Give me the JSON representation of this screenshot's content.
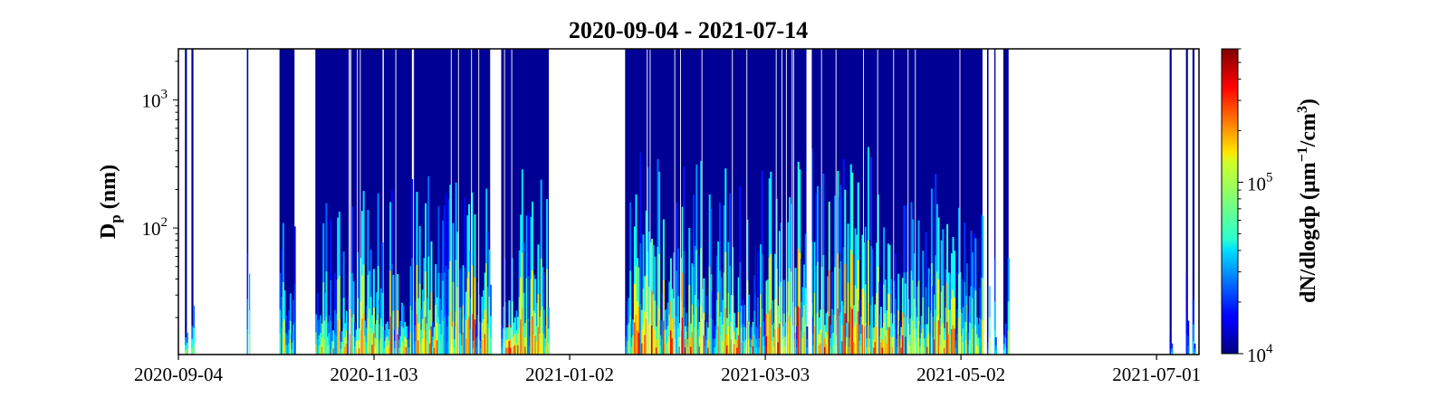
{
  "chart_data": {
    "type": "heatmap",
    "title": "2020-09-04 - 2021-07-14",
    "xlabel": "",
    "ylabel": "D",
    "ylabel_sub": "p",
    "ylabel_unit": " (nm)",
    "x_tick_labels": [
      "2020-09-04",
      "2020-11-03",
      "2021-01-02",
      "2021-03-03",
      "2021-05-02",
      "2021-07-01"
    ],
    "x_tick_dates": [
      "2020-09-04",
      "2020-11-03",
      "2021-01-02",
      "2021-03-03",
      "2021-05-02",
      "2021-07-01"
    ],
    "xlim": [
      "2020-09-04",
      "2021-07-14"
    ],
    "y_scale": "log",
    "ylim": [
      10.3,
      2500
    ],
    "y_ticks": [
      {
        "value": 100,
        "base": "10",
        "exp": "2"
      },
      {
        "value": 1000,
        "base": "10",
        "exp": "3"
      }
    ],
    "colorbar": {
      "label_main": "dN/dlogdp (μm",
      "label_exp1": "−1",
      "label_mid": "/cm",
      "label_exp2": "3",
      "label_end": ")",
      "scale": "log",
      "range": [
        10000,
        600000
      ],
      "ticks": [
        {
          "value": 10000,
          "base": "10",
          "exp": "4"
        },
        {
          "value": 100000,
          "base": "10",
          "exp": "5"
        }
      ],
      "colormap": "jet"
    },
    "data_periods": [
      {
        "start": "2020-09-06",
        "end": "2020-09-06",
        "intensity": 0.3
      },
      {
        "start": "2020-09-08",
        "end": "2020-09-08",
        "intensity": 0.3
      },
      {
        "start": "2020-09-25",
        "end": "2020-09-25",
        "intensity": 0.4
      },
      {
        "start": "2020-10-05",
        "end": "2020-10-09",
        "intensity": 0.45
      },
      {
        "start": "2020-10-16",
        "end": "2020-10-26",
        "intensity": 0.55
      },
      {
        "start": "2020-10-27",
        "end": "2020-11-05",
        "intensity": 0.6
      },
      {
        "start": "2020-11-06",
        "end": "2020-11-14",
        "intensity": 0.6
      },
      {
        "start": "2020-11-15",
        "end": "2020-12-01",
        "intensity": 0.65
      },
      {
        "start": "2020-12-01",
        "end": "2020-12-08",
        "intensity": 0.6
      },
      {
        "start": "2020-12-12",
        "end": "2020-12-26",
        "intensity": 0.7
      },
      {
        "start": "2021-01-19",
        "end": "2021-02-07",
        "intensity": 0.75
      },
      {
        "start": "2021-02-07",
        "end": "2021-02-28",
        "intensity": 0.7
      },
      {
        "start": "2021-02-28",
        "end": "2021-03-15",
        "intensity": 0.75
      },
      {
        "start": "2021-03-17",
        "end": "2021-04-05",
        "intensity": 0.8
      },
      {
        "start": "2021-04-05",
        "end": "2021-04-24",
        "intensity": 0.7
      },
      {
        "start": "2021-04-24",
        "end": "2021-05-04",
        "intensity": 0.65
      },
      {
        "start": "2021-05-04",
        "end": "2021-05-08",
        "intensity": 0.45
      },
      {
        "start": "2021-05-10",
        "end": "2021-05-10",
        "intensity": 0.3
      },
      {
        "start": "2021-05-12",
        "end": "2021-05-12",
        "intensity": 0.3
      },
      {
        "start": "2021-05-15",
        "end": "2021-05-16",
        "intensity": 0.4
      },
      {
        "start": "2021-07-05",
        "end": "2021-07-05",
        "intensity": 0.05
      },
      {
        "start": "2021-07-10",
        "end": "2021-07-10",
        "intensity": 0.05
      },
      {
        "start": "2021-07-12",
        "end": "2021-07-12",
        "intensity": 0.05
      }
    ]
  }
}
